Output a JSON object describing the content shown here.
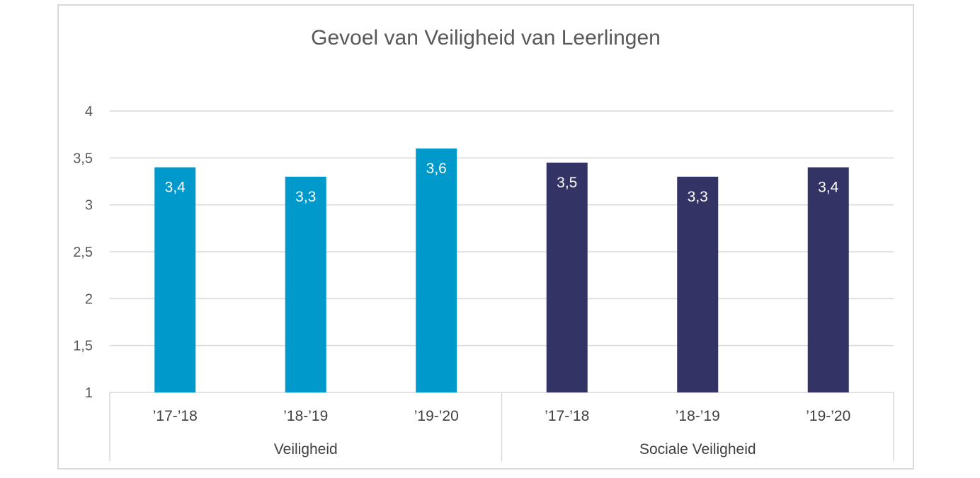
{
  "chart_data": {
    "type": "bar",
    "title": "Gevoel van Veiligheid van Leerlingen",
    "ylim": [
      1,
      4
    ],
    "yticks": [
      "1",
      "1,5",
      "2",
      "2,5",
      "3",
      "3,5",
      "4"
    ],
    "grid": true,
    "groups": [
      {
        "name": "Veiligheid",
        "color": "#0099cc",
        "categories": [
          "’17-’18",
          "’18-’19",
          "’19-’20"
        ],
        "values": [
          3.4,
          3.3,
          3.6
        ],
        "labels": [
          "3,4",
          "3,3",
          "3,6"
        ]
      },
      {
        "name": "Sociale Veiligheid",
        "color": "#333366",
        "categories": [
          "’17-’18",
          "’18-’19",
          "’19-’20"
        ],
        "values": [
          3.45,
          3.3,
          3.4
        ],
        "labels": [
          "3,5",
          "3,3",
          "3,4"
        ]
      }
    ]
  }
}
